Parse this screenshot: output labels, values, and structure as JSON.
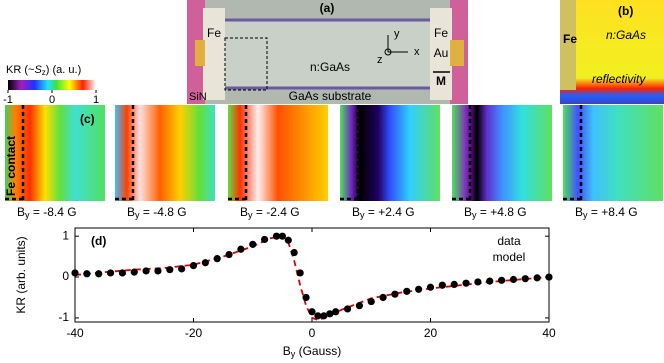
{
  "panel_a": {
    "label": "(a)",
    "fe_left": "Fe",
    "fe_right": "Fe",
    "au": "Au",
    "material": "n:GaAs",
    "substrate": "GaAs substrate",
    "sin": "SiN",
    "axes": [
      "y",
      "x",
      "z"
    ],
    "magnet": "M"
  },
  "panel_b": {
    "label": "(b)",
    "fe": "Fe",
    "material": "n:GaAs",
    "reflectivity": "reflectivity"
  },
  "colorbar": {
    "title": [
      "KR (~",
      "S",
      "z",
      ") (a. u.)"
    ],
    "ticks": [
      -1,
      0,
      1
    ]
  },
  "panel_c": {
    "label": "(c)",
    "fe_contact": "Fe contact",
    "panels": [
      {
        "label": [
          "B",
          "y",
          " = -8.4 G"
        ]
      },
      {
        "label": [
          "B",
          "y",
          " = -4.8 G"
        ]
      },
      {
        "label": [
          "B",
          "y",
          " = -2.4 G"
        ]
      },
      {
        "label": [
          "B",
          "y",
          " = +2.4 G"
        ]
      },
      {
        "label": [
          "B",
          "y",
          " = +4.8 G"
        ]
      },
      {
        "label": [
          "B",
          "y",
          " = +8.4 G"
        ]
      }
    ]
  },
  "chart_data": {
    "type": "scatter",
    "title": "(d)",
    "x_label": [
      "B",
      "y",
      " (Gauss)"
    ],
    "y_label": "KR (arb. units)",
    "xlim": [
      -40,
      40
    ],
    "xticks": [
      -40,
      -20,
      0,
      20,
      40
    ],
    "ylim": [
      -1.1,
      1.2
    ],
    "yticks": [
      -1,
      0,
      1
    ],
    "grid": false,
    "legend": "upper right",
    "series": [
      {
        "name": "data",
        "color": "#000000",
        "mode": "markers",
        "x": [
          -40,
          -38,
          -36,
          -34,
          -32,
          -30,
          -28,
          -26,
          -24,
          -22,
          -20,
          -18,
          -16,
          -14,
          -12,
          -10,
          -8,
          -6,
          -5,
          -4,
          -3,
          -2,
          -1,
          0,
          1,
          2,
          3,
          4,
          6,
          8,
          10,
          12,
          14,
          16,
          18,
          20,
          22,
          24,
          26,
          28,
          30,
          32,
          34,
          36,
          38,
          40
        ],
        "values": [
          0.1,
          0.08,
          0.08,
          0.1,
          0.1,
          0.12,
          0.15,
          0.15,
          0.18,
          0.2,
          0.28,
          0.35,
          0.45,
          0.55,
          0.68,
          0.8,
          0.92,
          1.0,
          1.0,
          0.9,
          0.6,
          0.1,
          -0.5,
          -0.85,
          -0.95,
          -0.95,
          -0.9,
          -0.85,
          -0.78,
          -0.7,
          -0.6,
          -0.5,
          -0.42,
          -0.35,
          -0.3,
          -0.25,
          -0.2,
          -0.18,
          -0.15,
          -0.12,
          -0.1,
          -0.08,
          -0.06,
          -0.04,
          -0.02,
          0.0
        ]
      },
      {
        "name": "model",
        "color": "#e00000",
        "mode": "dashed-line",
        "x": [
          -40,
          -35,
          -30,
          -25,
          -20,
          -15,
          -10,
          -7,
          -5,
          -4,
          -3,
          -2,
          -1,
          0,
          1,
          3,
          5,
          10,
          15,
          20,
          25,
          30,
          35,
          40
        ],
        "values": [
          0.05,
          0.12,
          0.18,
          0.22,
          0.3,
          0.5,
          0.75,
          0.95,
          1.0,
          0.85,
          0.4,
          -0.2,
          -0.7,
          -1.0,
          -1.05,
          -0.95,
          -0.8,
          -0.52,
          -0.38,
          -0.28,
          -0.2,
          -0.12,
          -0.06,
          0.0
        ]
      }
    ]
  }
}
